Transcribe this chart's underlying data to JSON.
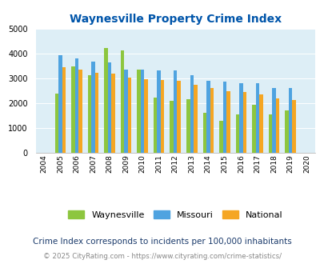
{
  "title": "Waynesville Property Crime Index",
  "years": [
    2004,
    2005,
    2006,
    2007,
    2008,
    2009,
    2010,
    2011,
    2012,
    2013,
    2014,
    2015,
    2016,
    2017,
    2018,
    2019,
    2020
  ],
  "waynesville": [
    null,
    2400,
    3500,
    3150,
    4250,
    4150,
    3350,
    2250,
    2100,
    2175,
    1625,
    1300,
    1575,
    1950,
    1575,
    1725,
    null
  ],
  "missouri": [
    null,
    3950,
    3825,
    3700,
    3650,
    3350,
    3350,
    3325,
    3325,
    3150,
    2925,
    2875,
    2825,
    2825,
    2625,
    2625,
    null
  ],
  "national": [
    null,
    3450,
    3350,
    3250,
    3200,
    3050,
    2975,
    2950,
    2900,
    2750,
    2625,
    2500,
    2475,
    2375,
    2200,
    2150,
    null
  ],
  "waynesville_color": "#8dc63f",
  "missouri_color": "#4fa3e0",
  "national_color": "#f5a623",
  "bg_color": "#ddeef6",
  "ylim": [
    0,
    5000
  ],
  "yticks": [
    0,
    1000,
    2000,
    3000,
    4000,
    5000
  ],
  "footnote1": "Crime Index corresponds to incidents per 100,000 inhabitants",
  "footnote2": "© 2025 CityRating.com - https://www.cityrating.com/crime-statistics/",
  "title_color": "#0055aa",
  "footnote1_color": "#1a3a6b",
  "footnote2_color": "#888888"
}
